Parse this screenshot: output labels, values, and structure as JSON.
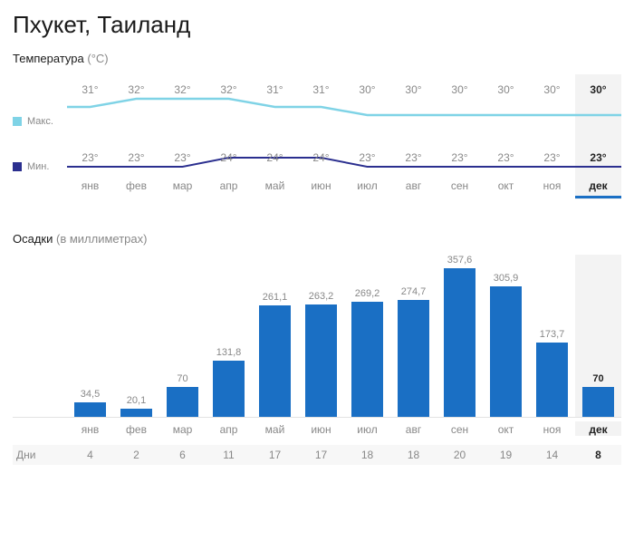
{
  "title": "Пхукет, Таиланд",
  "temperature": {
    "label": "Температура",
    "unit": "(°C)",
    "legend_max": "Макс.",
    "legend_min": "Мин.",
    "max_color": "#7fd3e6",
    "min_color": "#2b2f8f",
    "max_values": [
      31,
      32,
      32,
      32,
      31,
      31,
      30,
      30,
      30,
      30,
      30,
      30
    ],
    "min_values": [
      23,
      23,
      23,
      24,
      24,
      24,
      23,
      23,
      23,
      23,
      23,
      23
    ],
    "max_display": [
      "31°",
      "32°",
      "32°",
      "32°",
      "31°",
      "31°",
      "30°",
      "30°",
      "30°",
      "30°",
      "30°",
      "30°"
    ],
    "min_display": [
      "23°",
      "23°",
      "23°",
      "24°",
      "24°",
      "24°",
      "23°",
      "23°",
      "23°",
      "23°",
      "23°",
      "23°"
    ],
    "label_fontsize": 12,
    "highlight_index": 11
  },
  "months": [
    "янв",
    "фев",
    "мар",
    "апр",
    "май",
    "июн",
    "июл",
    "авг",
    "сен",
    "окт",
    "ноя",
    "дек"
  ],
  "precipitation": {
    "label": "Осадки",
    "unit": "(в миллиметрах)",
    "values": [
      34.5,
      20.1,
      70,
      131.8,
      261.1,
      263.2,
      269.2,
      274.7,
      357.6,
      305.9,
      173.7,
      70
    ],
    "display": [
      "34,5",
      "20,1",
      "70",
      "131,8",
      "261,1",
      "263,2",
      "269,2",
      "274,7",
      "357,6",
      "305,9",
      "173,7",
      "70"
    ],
    "bar_color": "#1a6fc4",
    "max_scale": 380,
    "highlight_index": 11
  },
  "days": {
    "label": "Дни",
    "values": [
      4,
      2,
      6,
      11,
      17,
      17,
      18,
      18,
      20,
      19,
      14,
      8
    ],
    "highlight_index": 11
  },
  "colors": {
    "text_muted": "#888888",
    "text_strong": "#222222",
    "highlight_bg": "#f3f3f3",
    "grid": "#e3e3e3"
  }
}
